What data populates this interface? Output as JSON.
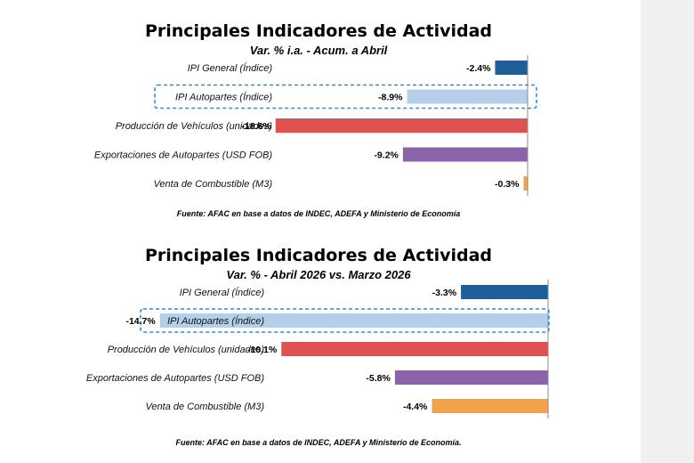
{
  "chart_data": [
    {
      "type": "bar",
      "orientation": "horizontal",
      "title": "Principales Indicadores de Actividad",
      "subtitle": "Var. % i.a. - Acum. a Abril",
      "categories": [
        "IPI General (Índice)",
        "IPI Autopartes (Índice)",
        "Producción de Vehículos (unidades)",
        "Exportaciones de Autopartes (USD FOB)",
        "Venta de Combustible (M3)"
      ],
      "values": [
        -2.4,
        -8.9,
        -18.6,
        -9.2,
        -0.3
      ],
      "value_labels": [
        "-2.4%",
        "-8.9%",
        "-18.6%",
        "-9.2%",
        "-0.3%"
      ],
      "bar_colors": [
        "#1f5f99",
        "#b4cfea",
        "#e05252",
        "#8a63a8",
        "#f2a14d"
      ],
      "highlighted_category": "IPI Autopartes (Índice)",
      "highlight_color": "#2e8fd0",
      "source": "Fuente: AFAC en base a datos de INDEC, ADEFA y Ministerio de Economía",
      "xlim": [
        -19.5,
        0
      ],
      "grid": false
    },
    {
      "type": "bar",
      "orientation": "horizontal",
      "title": "Principales Indicadores de Actividad",
      "subtitle": "Var. % - Abril 2026 vs. Marzo 2026",
      "categories": [
        "IPI General (Índice)",
        "IPI Autopartes (Índice)",
        "Producción de Vehículos (unidades)",
        "Exportaciones de Autopartes (USD FOB)",
        "Venta de Combustible (M3)"
      ],
      "values": [
        -3.3,
        -14.7,
        -10.1,
        -5.8,
        -4.4
      ],
      "value_labels": [
        "-3.3%",
        "-14.7%",
        "-10.1%",
        "-5.8%",
        "-4.4%"
      ],
      "bar_colors": [
        "#1f5f99",
        "#b4cfea",
        "#e05252",
        "#8a63a8",
        "#f2a14d"
      ],
      "highlighted_category": "IPI Autopartes (Índice)",
      "highlight_color": "#2e8fd0",
      "source": "Fuente: AFAC en base a datos de INDEC, ADEFA y Ministerio de Economía.",
      "xlim": [
        -15.5,
        0
      ],
      "grid": false
    }
  ]
}
